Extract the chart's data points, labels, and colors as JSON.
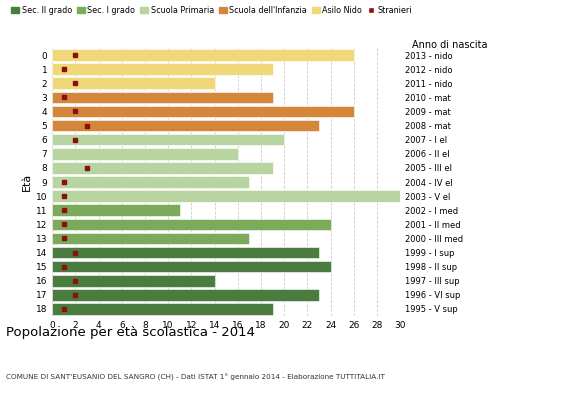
{
  "ages": [
    18,
    17,
    16,
    15,
    14,
    13,
    12,
    11,
    10,
    9,
    8,
    7,
    6,
    5,
    4,
    3,
    2,
    1,
    0
  ],
  "bar_values": [
    19,
    23,
    14,
    24,
    23,
    17,
    24,
    11,
    30,
    17,
    19,
    16,
    20,
    23,
    26,
    19,
    14,
    19,
    26
  ],
  "stranieri": [
    1,
    2,
    2,
    1,
    2,
    1,
    1,
    1,
    1,
    1,
    3,
    0,
    2,
    3,
    2,
    1,
    2,
    1,
    2
  ],
  "right_labels": [
    "1995 - V sup",
    "1996 - VI sup",
    "1997 - III sup",
    "1998 - II sup",
    "1999 - I sup",
    "2000 - III med",
    "2001 - II med",
    "2002 - I med",
    "2003 - V el",
    "2004 - IV el",
    "2005 - III el",
    "2006 - II el",
    "2007 - I el",
    "2008 - mat",
    "2009 - mat",
    "2010 - mat",
    "2011 - nido",
    "2012 - nido",
    "2013 - nido"
  ],
  "bar_colors": [
    "#4a7c3f",
    "#4a7c3f",
    "#4a7c3f",
    "#4a7c3f",
    "#4a7c3f",
    "#7aaa5a",
    "#7aaa5a",
    "#7aaa5a",
    "#b8d4a0",
    "#b8d4a0",
    "#b8d4a0",
    "#b8d4a0",
    "#b8d4a0",
    "#d4873a",
    "#d4873a",
    "#d4873a",
    "#f0d878",
    "#f0d878",
    "#f0d878"
  ],
  "legend_labels": [
    "Sec. II grado",
    "Sec. I grado",
    "Scuola Primaria",
    "Scuola dell'Infanzia",
    "Asilo Nido",
    "Stranieri"
  ],
  "legend_colors": [
    "#4a7c3f",
    "#7aaa5a",
    "#b8d4a0",
    "#d4873a",
    "#f0d878",
    "#8b1010"
  ],
  "stranieri_color": "#8b1010",
  "title": "Popolazione per età scolastica - 2014",
  "subtitle": "COMUNE DI SANT'EUSANIO DEL SANGRO (CH) - Dati ISTAT 1° gennaio 2014 - Elaborazione TUTTITALIA.IT",
  "ylabel_eta": "Età",
  "xlabel_anno": "Anno di nascita",
  "xlim": [
    0,
    30
  ],
  "xticks": [
    0,
    2,
    4,
    6,
    8,
    10,
    12,
    14,
    16,
    18,
    20,
    22,
    24,
    26,
    28,
    30
  ],
  "background_color": "#ffffff",
  "grid_color": "#cccccc"
}
